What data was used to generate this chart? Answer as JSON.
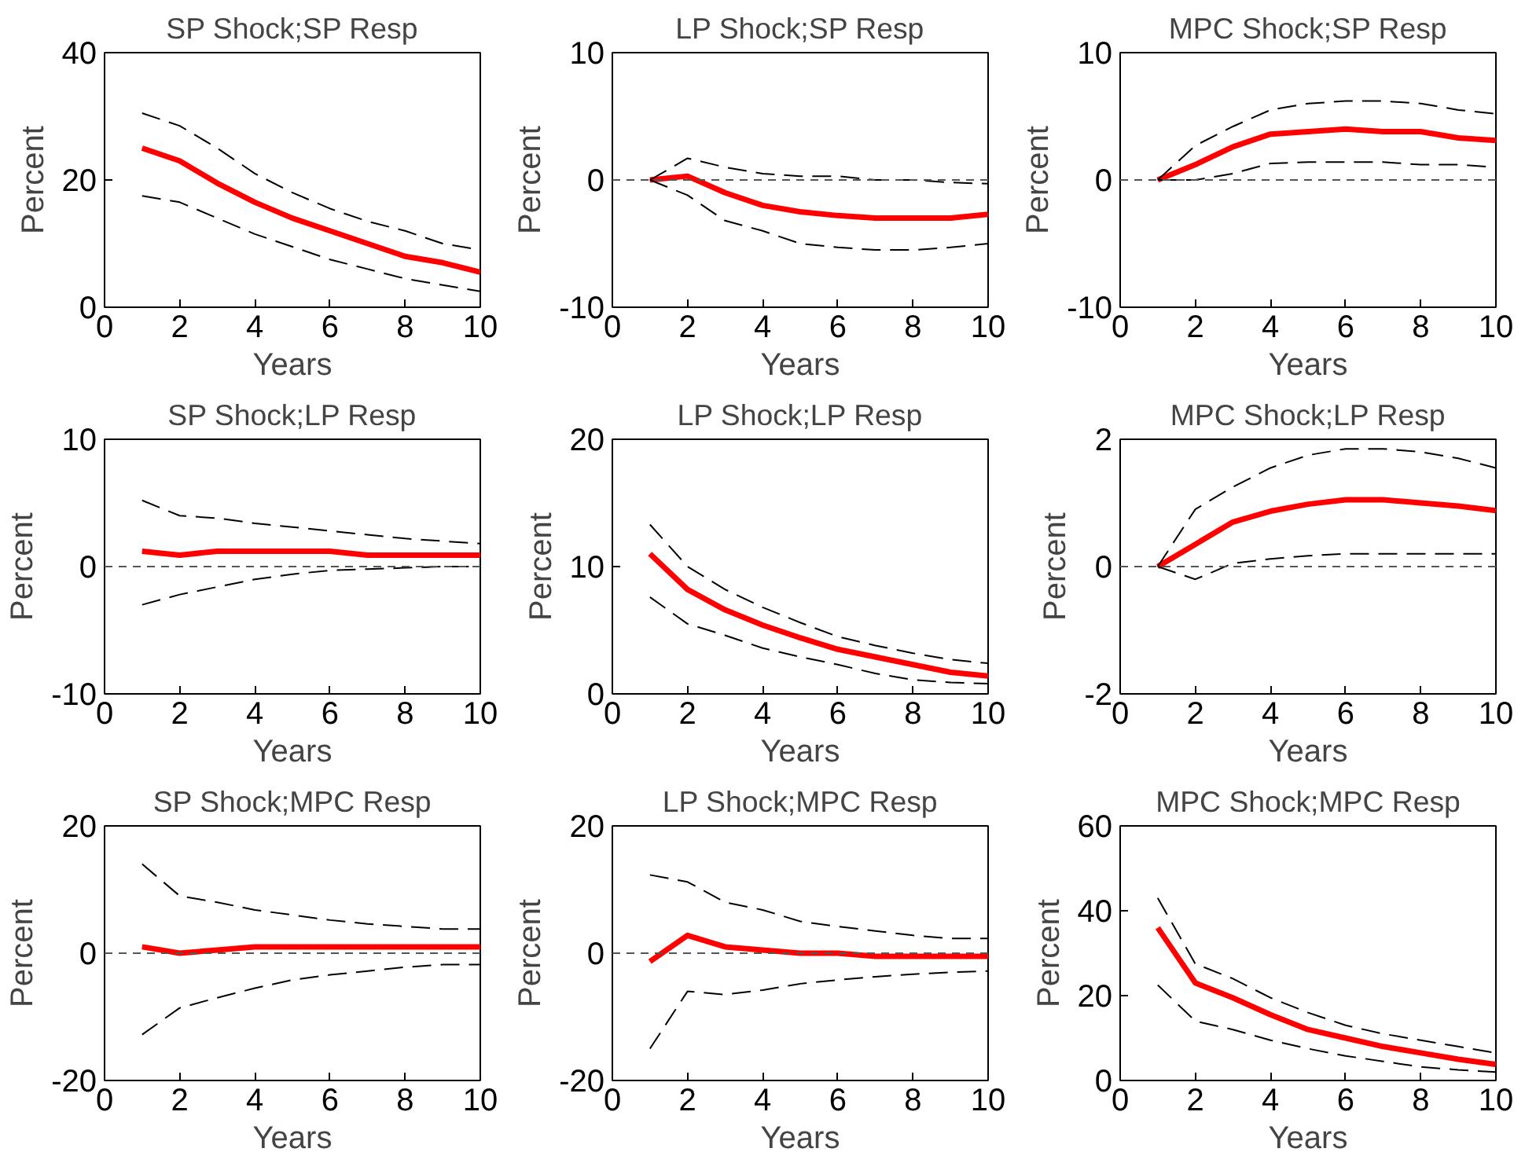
{
  "chart_data": [
    {
      "type": "line",
      "title": "SP Shock;SP Resp",
      "xlabel": "Years",
      "ylabel": "Percent",
      "x": [
        1,
        2,
        3,
        4,
        5,
        6,
        7,
        8,
        9,
        10
      ],
      "xlim": [
        0,
        10
      ],
      "xticks": [
        0,
        2,
        4,
        6,
        8,
        10
      ],
      "ylim": [
        0,
        40
      ],
      "yticks": [
        0,
        20,
        40
      ],
      "grid": false,
      "series": [
        {
          "color": "#ff0000",
          "line_style": "solid",
          "values": [
            25,
            23,
            19.5,
            16.5,
            14,
            12,
            10,
            8,
            7,
            5.5
          ]
        },
        {
          "color": "#000000",
          "line_style": "dashed",
          "values": [
            30.5,
            28.5,
            25,
            21,
            18,
            15.5,
            13.5,
            12,
            10,
            9
          ]
        },
        {
          "color": "#000000",
          "line_style": "dashed",
          "values": [
            17.5,
            16.5,
            14,
            11.5,
            9.5,
            7.5,
            6,
            4.5,
            3.5,
            2.5
          ]
        }
      ]
    },
    {
      "type": "line",
      "title": "LP Shock;SP Resp",
      "xlabel": "Years",
      "ylabel": "Percent",
      "x": [
        1,
        2,
        3,
        4,
        5,
        6,
        7,
        8,
        9,
        10
      ],
      "xlim": [
        0,
        10
      ],
      "xticks": [
        0,
        2,
        4,
        6,
        8,
        10
      ],
      "ylim": [
        -10,
        10
      ],
      "yticks": [
        -10,
        0,
        10
      ],
      "grid": false,
      "ref_lines": [
        {
          "axis": "y",
          "value": 0,
          "line_style": "dashed",
          "color": "#555555"
        }
      ],
      "series": [
        {
          "color": "#ff0000",
          "line_style": "solid",
          "values": [
            0,
            0.3,
            -1,
            -2,
            -2.5,
            -2.8,
            -3,
            -3,
            -3,
            -2.7
          ]
        },
        {
          "color": "#000000",
          "line_style": "dashed",
          "values": [
            0,
            1.7,
            1,
            0.5,
            0.3,
            0.3,
            0,
            0,
            -0.2,
            -0.3
          ]
        },
        {
          "color": "#000000",
          "line_style": "dashed",
          "values": [
            0,
            -1.2,
            -3.2,
            -4,
            -5,
            -5.3,
            -5.5,
            -5.5,
            -5.3,
            -5
          ]
        }
      ]
    },
    {
      "type": "line",
      "title": "MPC Shock;SP Resp",
      "xlabel": "Years",
      "ylabel": "Percent",
      "x": [
        1,
        2,
        3,
        4,
        5,
        6,
        7,
        8,
        9,
        10
      ],
      "xlim": [
        0,
        10
      ],
      "xticks": [
        0,
        2,
        4,
        6,
        8,
        10
      ],
      "ylim": [
        -10,
        10
      ],
      "yticks": [
        -10,
        0,
        10
      ],
      "grid": false,
      "ref_lines": [
        {
          "axis": "y",
          "value": 0,
          "line_style": "dashed",
          "color": "#555555"
        }
      ],
      "series": [
        {
          "color": "#ff0000",
          "line_style": "solid",
          "values": [
            0,
            1.2,
            2.6,
            3.6,
            3.8,
            4,
            3.8,
            3.8,
            3.3,
            3.1
          ]
        },
        {
          "color": "#000000",
          "line_style": "dashed",
          "values": [
            0,
            2.7,
            4.2,
            5.5,
            6,
            6.2,
            6.2,
            6,
            5.5,
            5.2
          ]
        },
        {
          "color": "#000000",
          "line_style": "dashed",
          "values": [
            0,
            0,
            0.5,
            1.3,
            1.4,
            1.4,
            1.4,
            1.2,
            1.2,
            1.0
          ]
        }
      ]
    },
    {
      "type": "line",
      "title": "SP Shock;LP Resp",
      "xlabel": "Years",
      "ylabel": "Percent",
      "x": [
        1,
        2,
        3,
        4,
        5,
        6,
        7,
        8,
        9,
        10
      ],
      "xlim": [
        0,
        10
      ],
      "xticks": [
        0,
        2,
        4,
        6,
        8,
        10
      ],
      "ylim": [
        -10,
        10
      ],
      "yticks": [
        -10,
        0,
        10
      ],
      "grid": false,
      "ref_lines": [
        {
          "axis": "y",
          "value": 0,
          "line_style": "dashed",
          "color": "#555555"
        }
      ],
      "series": [
        {
          "color": "#ff0000",
          "line_style": "solid",
          "values": [
            1.2,
            0.9,
            1.2,
            1.2,
            1.2,
            1.2,
            0.9,
            0.9,
            0.9,
            0.9
          ]
        },
        {
          "color": "#000000",
          "line_style": "dashed",
          "values": [
            5.2,
            4,
            3.8,
            3.4,
            3.1,
            2.8,
            2.5,
            2.2,
            2,
            1.8
          ]
        },
        {
          "color": "#000000",
          "line_style": "dashed",
          "values": [
            -3,
            -2.2,
            -1.6,
            -1,
            -0.6,
            -0.3,
            -0.2,
            -0.1,
            0,
            0
          ]
        }
      ]
    },
    {
      "type": "line",
      "title": "LP Shock;LP Resp",
      "xlabel": "Years",
      "ylabel": "Percent",
      "x": [
        1,
        2,
        3,
        4,
        5,
        6,
        7,
        8,
        9,
        10
      ],
      "xlim": [
        0,
        10
      ],
      "xticks": [
        0,
        2,
        4,
        6,
        8,
        10
      ],
      "ylim": [
        0,
        20
      ],
      "yticks": [
        0,
        10,
        20
      ],
      "grid": false,
      "series": [
        {
          "color": "#ff0000",
          "line_style": "solid",
          "values": [
            11,
            8.2,
            6.6,
            5.4,
            4.4,
            3.5,
            2.9,
            2.3,
            1.7,
            1.4
          ]
        },
        {
          "color": "#000000",
          "line_style": "dashed",
          "values": [
            13.3,
            10,
            8.2,
            6.8,
            5.6,
            4.5,
            3.8,
            3.2,
            2.7,
            2.4
          ]
        },
        {
          "color": "#000000",
          "line_style": "dashed",
          "values": [
            7.6,
            5.5,
            4.6,
            3.6,
            2.9,
            2.3,
            1.6,
            1.1,
            0.9,
            0.8
          ]
        }
      ]
    },
    {
      "type": "line",
      "title": "MPC Shock;LP Resp",
      "xlabel": "Years",
      "ylabel": "Percent",
      "x": [
        1,
        2,
        3,
        4,
        5,
        6,
        7,
        8,
        9,
        10
      ],
      "xlim": [
        0,
        10
      ],
      "xticks": [
        0,
        2,
        4,
        6,
        8,
        10
      ],
      "ylim": [
        -2,
        2
      ],
      "yticks": [
        -2,
        0,
        2
      ],
      "grid": false,
      "ref_lines": [
        {
          "axis": "y",
          "value": 0,
          "line_style": "dashed",
          "color": "#555555"
        }
      ],
      "series": [
        {
          "color": "#ff0000",
          "line_style": "solid",
          "values": [
            0,
            0.35,
            0.7,
            0.87,
            0.98,
            1.05,
            1.05,
            1.0,
            0.95,
            0.88
          ]
        },
        {
          "color": "#000000",
          "line_style": "dashed",
          "values": [
            0,
            0.9,
            1.25,
            1.55,
            1.75,
            1.85,
            1.85,
            1.8,
            1.7,
            1.55
          ]
        },
        {
          "color": "#000000",
          "line_style": "dashed",
          "values": [
            0,
            -0.2,
            0.05,
            0.12,
            0.17,
            0.2,
            0.2,
            0.2,
            0.2,
            0.2
          ]
        }
      ]
    },
    {
      "type": "line",
      "title": "SP Shock;MPC Resp",
      "xlabel": "Years",
      "ylabel": "Percent",
      "x": [
        1,
        2,
        3,
        4,
        5,
        6,
        7,
        8,
        9,
        10
      ],
      "xlim": [
        0,
        10
      ],
      "xticks": [
        0,
        2,
        4,
        6,
        8,
        10
      ],
      "ylim": [
        -20,
        20
      ],
      "yticks": [
        -20,
        0,
        20
      ],
      "grid": false,
      "ref_lines": [
        {
          "axis": "y",
          "value": 0,
          "line_style": "dashed",
          "color": "#555555"
        }
      ],
      "series": [
        {
          "color": "#ff0000",
          "line_style": "solid",
          "values": [
            1,
            0,
            0.5,
            1,
            1,
            1,
            1,
            1,
            1,
            1
          ]
        },
        {
          "color": "#000000",
          "line_style": "dashed",
          "values": [
            14,
            9,
            8,
            6.8,
            6,
            5.2,
            4.6,
            4.2,
            3.8,
            3.8
          ]
        },
        {
          "color": "#000000",
          "line_style": "dashed",
          "values": [
            -12.8,
            -8.6,
            -7,
            -5.5,
            -4.2,
            -3.4,
            -2.8,
            -2.2,
            -1.8,
            -1.8
          ]
        }
      ]
    },
    {
      "type": "line",
      "title": "LP Shock;MPC Resp",
      "xlabel": "Years",
      "ylabel": "Percent",
      "x": [
        1,
        2,
        3,
        4,
        5,
        6,
        7,
        8,
        9,
        10
      ],
      "xlim": [
        0,
        10
      ],
      "xticks": [
        0,
        2,
        4,
        6,
        8,
        10
      ],
      "ylim": [
        -20,
        20
      ],
      "yticks": [
        -20,
        0,
        20
      ],
      "grid": false,
      "ref_lines": [
        {
          "axis": "y",
          "value": 0,
          "line_style": "dashed",
          "color": "#555555"
        }
      ],
      "series": [
        {
          "color": "#ff0000",
          "line_style": "solid",
          "values": [
            -1.3,
            2.8,
            1,
            0.5,
            0,
            0,
            -0.5,
            -0.5,
            -0.5,
            -0.5
          ]
        },
        {
          "color": "#000000",
          "line_style": "dashed",
          "values": [
            12.3,
            11.2,
            8,
            6.8,
            5,
            4.2,
            3.5,
            2.8,
            2.3,
            2.3
          ]
        },
        {
          "color": "#000000",
          "line_style": "dashed",
          "values": [
            -15,
            -6,
            -6.5,
            -5.8,
            -4.8,
            -4.2,
            -3.7,
            -3.3,
            -3,
            -2.8
          ]
        }
      ]
    },
    {
      "type": "line",
      "title": "MPC Shock;MPC Resp",
      "xlabel": "Years",
      "ylabel": "Percent",
      "x": [
        1,
        2,
        3,
        4,
        5,
        6,
        7,
        8,
        9,
        10
      ],
      "xlim": [
        0,
        10
      ],
      "xticks": [
        0,
        2,
        4,
        6,
        8,
        10
      ],
      "ylim": [
        0,
        60
      ],
      "yticks": [
        0,
        20,
        40,
        60
      ],
      "grid": false,
      "series": [
        {
          "color": "#ff0000",
          "line_style": "solid",
          "values": [
            36,
            23,
            19.5,
            15.5,
            12,
            10,
            8,
            6.5,
            5,
            3.8
          ]
        },
        {
          "color": "#000000",
          "line_style": "dashed",
          "values": [
            43,
            27.5,
            24,
            19.5,
            16,
            13,
            11,
            9.5,
            8,
            6.5
          ]
        },
        {
          "color": "#000000",
          "line_style": "dashed",
          "values": [
            22.5,
            14,
            12,
            9.5,
            7.5,
            5.8,
            4.5,
            3.2,
            2.5,
            2
          ]
        }
      ]
    }
  ]
}
